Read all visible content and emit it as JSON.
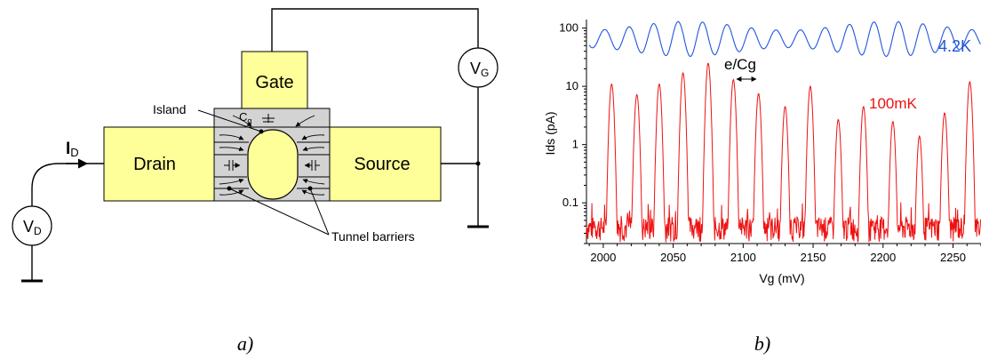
{
  "circuit": {
    "gate_label": "Gate",
    "drain_label": "Drain",
    "source_label": "Source",
    "island_label": "Island",
    "tunnel_label": "Tunnel barriers",
    "cg_main": "C",
    "cg_sub": "g",
    "id_main": "I",
    "id_sub": "D",
    "vd_main": "V",
    "vd_sub": "D",
    "vg_main": "V",
    "vg_sub": "G",
    "caption": "a)",
    "colors": {
      "electrode": "#ffff99",
      "island_region": "#d3d3d3"
    }
  },
  "chart_data": {
    "type": "line",
    "xlabel": "Vg (mV)",
    "ylabel": "Ids (pA)",
    "x_ticks": [
      "2000",
      "2050",
      "2100",
      "2150",
      "2200",
      "2250"
    ],
    "y_ticks": [
      "0.1",
      "1",
      "10",
      "100"
    ],
    "xlim": [
      1988,
      2270
    ],
    "ylim": [
      0.02,
      140
    ],
    "y_scale": "log",
    "annotation": "e/Cg",
    "caption": "b)",
    "series": [
      {
        "name": "4.2K",
        "color": "#2255dd",
        "period": 17.5,
        "mean": 65,
        "amplitude": 0.3
      },
      {
        "name": "100mK",
        "color": "#ee1111",
        "baseline": 0.03,
        "peaks": [
          {
            "x": 2006,
            "y": 11
          },
          {
            "x": 2024,
            "y": 7.2
          },
          {
            "x": 2040,
            "y": 11
          },
          {
            "x": 2057,
            "y": 17
          },
          {
            "x": 2075,
            "y": 25
          },
          {
            "x": 2093,
            "y": 13
          },
          {
            "x": 2111,
            "y": 7.5
          },
          {
            "x": 2130,
            "y": 4.5
          },
          {
            "x": 2148,
            "y": 10
          },
          {
            "x": 2168,
            "y": 2.7
          },
          {
            "x": 2186,
            "y": 4.5
          },
          {
            "x": 2207,
            "y": 2.5
          },
          {
            "x": 2226,
            "y": 1.4
          },
          {
            "x": 2244,
            "y": 3.5
          },
          {
            "x": 2262,
            "y": 12
          }
        ]
      }
    ]
  }
}
